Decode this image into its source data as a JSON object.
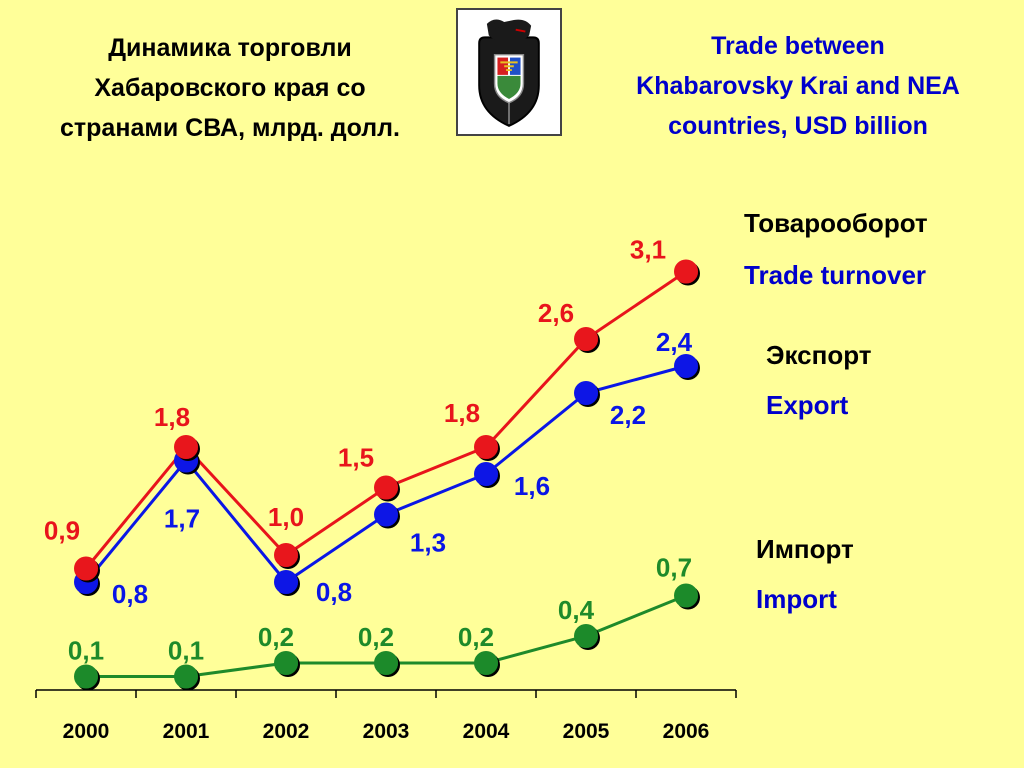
{
  "title_ru": [
    "Динамика торговли",
    "Хабаровского края со",
    "странами СВА, млрд. долл."
  ],
  "title_en": [
    "Trade between",
    "Khabarovsky Krai and NEA",
    "countries, USD billion"
  ],
  "emblem": {
    "icon": "bear-coat-of-arms-icon"
  },
  "colors": {
    "turnover": "#e8141c",
    "export": "#0a16e6",
    "import": "#1e8a2a",
    "background": "#ffff99"
  },
  "legend": [
    {
      "series": "turnover",
      "ru": "Товарооборот",
      "en": "Trade turnover"
    },
    {
      "series": "export",
      "ru": "Экспорт",
      "en": "Export"
    },
    {
      "series": "import",
      "ru": "Импорт",
      "en": "Import"
    }
  ],
  "chart_data": {
    "type": "line",
    "categories": [
      "2000",
      "2001",
      "2002",
      "2003",
      "2004",
      "2005",
      "2006"
    ],
    "ylim": [
      0,
      3.5
    ],
    "grid": false,
    "series": [
      {
        "key": "turnover",
        "values": [
          0.9,
          1.8,
          1.0,
          1.5,
          1.8,
          2.6,
          3.1
        ],
        "labels": [
          "0,9",
          "1,8",
          "1,0",
          "1,5",
          "1,8",
          "2,6",
          "3,1"
        ]
      },
      {
        "key": "export",
        "values": [
          0.8,
          1.7,
          0.8,
          1.3,
          1.6,
          2.2,
          2.4
        ],
        "labels": [
          "0,8",
          "1,7",
          "0,8",
          "1,3",
          "1,6",
          "2,2",
          "2,4"
        ]
      },
      {
        "key": "import",
        "values": [
          0.1,
          0.1,
          0.2,
          0.2,
          0.2,
          0.4,
          0.7
        ],
        "labels": [
          "0,1",
          "0,1",
          "0,2",
          "0,2",
          "0,2",
          "0,4",
          "0,7"
        ]
      }
    ]
  }
}
